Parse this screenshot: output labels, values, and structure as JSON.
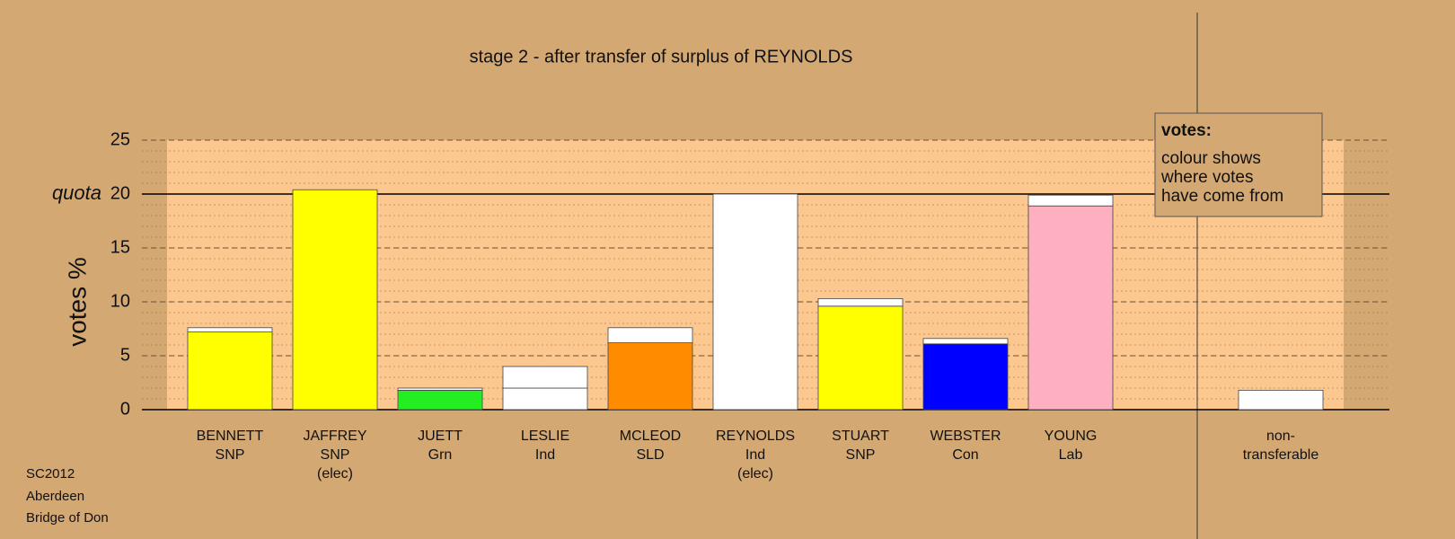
{
  "chart_data": {
    "type": "stacked-bar",
    "title": "stage 2 - after transfer of surplus of REYNOLDS",
    "y_label": "votes %",
    "quota_label": "quota",
    "quota_value": 20,
    "categories": [
      [
        "BENNETT",
        "SNP"
      ],
      [
        "JAFFREY",
        "SNP",
        "(elec)"
      ],
      [
        "JUETT",
        "Grn"
      ],
      [
        "LESLIE",
        "Ind"
      ],
      [
        "MCLEOD",
        "SLD"
      ],
      [
        "REYNOLDS",
        "Ind",
        "(elec)"
      ],
      [
        "STUART",
        "SNP"
      ],
      [
        "WEBSTER",
        "Con"
      ],
      [
        "YOUNG",
        "Lab"
      ],
      [
        "non-",
        "transferable"
      ]
    ],
    "values": [
      7.2,
      20.4,
      1.8,
      2.0,
      6.2,
      20.0,
      9.6,
      6.1,
      18.9,
      1.8
    ],
    "colors": [
      "#ffff00",
      "#ffff00",
      "#22ee22",
      "#ffffff",
      "#ff8c00",
      "#ffffff",
      "#ffff00",
      "#0000ff",
      "#ffb0c0",
      "#ffffff"
    ],
    "transfer_values": [
      0.4,
      0,
      0.2,
      2.0,
      1.4,
      0,
      0.7,
      0.5,
      1.0,
      0
    ],
    "transfer_color": "#ffffff",
    "ylim": [
      0,
      25
    ],
    "yticks": [
      0,
      5,
      10,
      15,
      20,
      25
    ],
    "minor_step": 1,
    "grid": true,
    "legend": {
      "title": "votes:",
      "lines": [
        "colour shows",
        "where votes",
        "have come from"
      ]
    },
    "footer": [
      "SC2012",
      "Aberdeen",
      "Bridge of Don"
    ]
  }
}
